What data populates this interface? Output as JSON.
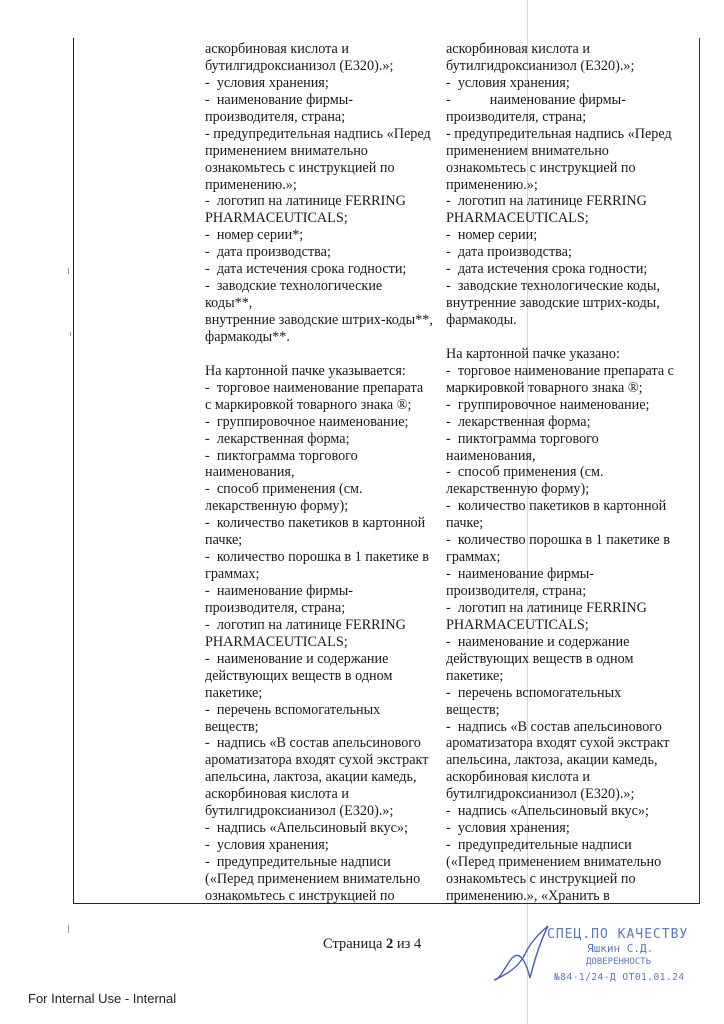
{
  "columns": {
    "left": [
      "аскорбиновая кислота и",
      "бутилгидроксианизол (Е320).»;",
      "-  условия хранения;",
      "-  наименование фирмы-",
      "производителя, страна;",
      "- предупредительная надпись «Перед",
      "применением внимательно",
      "ознакомьтесь с инструкцией по",
      "применению.»;",
      "-  логотип на латинице FERRING",
      "PHARMACEUTICALS;",
      "-  номер серии*;",
      "-  дата производства;",
      "-  дата истечения срока годности;",
      "-  заводские технологические",
      "коды**,",
      "внутренние заводские штрих-коды**,",
      "фармакоды**.",
      "",
      "На картонной пачке указывается:",
      "-  торговое наименование препарата",
      "с маркировкой товарного знака ®;",
      "-  группировочное наименование;",
      "-  лекарственная форма;",
      "-  пиктограмма торгового",
      "наименования,",
      "-  способ применения (см.",
      "лекарственную форму);",
      "-  количество пакетиков в картонной",
      "пачке;",
      "-  количество порошка в 1 пакетике в",
      "граммах;",
      "-  наименование фирмы-",
      "производителя, страна;",
      "-  логотип на латинице FERRING",
      "PHARMACEUTICALS;",
      "-  наименование и содержание",
      "действующих веществ в одном",
      "пакетике;",
      "-  перечень вспомогательных",
      "веществ;",
      "-  надпись «В состав апельсинового",
      "ароматизатора входят сухой экстракт",
      "апельсина, лактоза, акации камедь,",
      "аскорбиновая кислота и",
      "бутилгидроксианизол (Е320).»;",
      "-  надпись «Апельсиновый вкус»;",
      "-  условия хранения;",
      "-  предупредительные надписи",
      "(«Перед применением внимательно",
      "ознакомьтесь с инструкцией по"
    ],
    "right": [
      "аскорбиновая кислота и",
      "бутилгидроксианизол (Е320).»;",
      "-  условия хранения;",
      "-           наименование фирмы-",
      "производителя, страна;",
      "- предупредительная надпись «Перед",
      "применением внимательно",
      "ознакомьтесь с инструкцией по",
      "применению.»;",
      "-  логотип на латинице FERRING",
      "PHARMACEUTICALS;",
      "-  номер серии;",
      "-  дата производства;",
      "-  дата истечения срока годности;",
      "-  заводские технологические коды,",
      "внутренние заводские штрих-коды,",
      "фармакоды.",
      "",
      "На картонной пачке указано:",
      "-  торговое наименование препарата с",
      "маркировкой товарного знака ®;",
      "-  группировочное наименование;",
      "-  лекарственная форма;",
      "-  пиктограмма торгового",
      "наименования,",
      "-  способ применения (см.",
      "лекарственную форму);",
      "-  количество пакетиков в картонной",
      "пачке;",
      "-  количество порошка в 1 пакетике в",
      "граммах;",
      "-  наименование фирмы-",
      "производителя, страна;",
      "-  логотип на латинице FERRING",
      "PHARMACEUTICALS;",
      "-  наименование и содержание",
      "действующих веществ в одном",
      "пакетике;",
      "-  перечень вспомогательных",
      "веществ;",
      "-  надпись «В состав апельсинового",
      "ароматизатора входят сухой экстракт",
      "апельсина, лактоза, акации камедь,",
      "аскорбиновая кислота и",
      "бутилгидроксианизол (Е320).»;",
      "-  надпись «Апельсиновый вкус»;",
      "-  условия хранения;",
      "-  предупредительные надписи",
      "(«Перед применением внимательно",
      "ознакомьтесь с инструкцией по",
      "применению.», «Хранить в"
    ]
  },
  "footer": {
    "page_prefix": "Страница ",
    "page_number": "2",
    "page_sep": " из ",
    "page_total": "4",
    "internal_label": "For Internal Use - Internal"
  },
  "stamp": {
    "line1": "СПЕЦ.ПО КАЧЕСТВУ",
    "line2": "Яшкин С.Д.",
    "line3": "ДОВЕРЕННОСТЬ",
    "line4": "№84-1/24-Д ОТ01.01.24",
    "color": "#5a78b8"
  }
}
